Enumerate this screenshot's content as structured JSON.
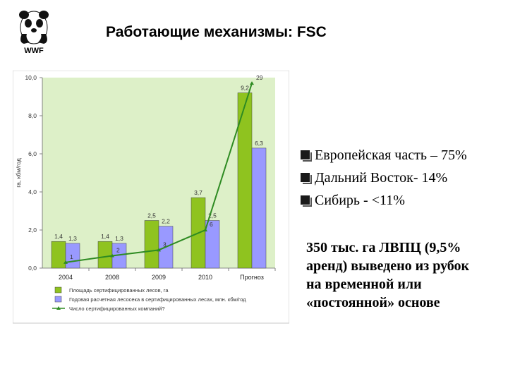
{
  "logo": {
    "text": "WWF"
  },
  "title": "Работающие механизмы: FSC",
  "bullets": [
    "Европейская часть – 75%",
    "Дальний Восток- 14%",
    "Сибирь - <11%"
  ],
  "note_lines": [
    "350 тыс. га ЛВПЦ (9,5%",
    "аренд) выведено из рубок",
    "на временной или",
    "«постоянной» основе"
  ],
  "chart_data": {
    "type": "bar",
    "categories": [
      "2004",
      "2008",
      "2009",
      "2010",
      "Прогноз"
    ],
    "ylabel": "га, кбм/год",
    "ylim": [
      0,
      10
    ],
    "yticks": [
      "0,0",
      "2,0",
      "4,0",
      "6,0",
      "8,0",
      "10,0"
    ],
    "series": [
      {
        "name": "Площадь сертифицированных лесов, га",
        "type": "bar",
        "color": "#8fc31f",
        "values": [
          1.4,
          1.4,
          2.5,
          3.7,
          9.2
        ],
        "labels": [
          "1,4",
          "1,4",
          "2,5",
          "3,7",
          "9,2"
        ]
      },
      {
        "name": "Годовая расчетная лесосека в сертифицированных лесах, млн. кбм/год",
        "type": "bar",
        "color": "#9999ff",
        "values": [
          1.3,
          1.3,
          2.2,
          2.5,
          6.3
        ],
        "labels": [
          "1,3",
          "1,3",
          "2,2",
          "2,5",
          "6,3"
        ]
      },
      {
        "name": "Число сертифицированных компаний?",
        "type": "line",
        "color": "#2e8b22",
        "values": [
          0.3,
          0.65,
          0.95,
          2.0,
          9.7
        ],
        "labels": [
          "1",
          "2",
          "3",
          "6",
          "29"
        ]
      }
    ],
    "legend_position": "bottom",
    "grid": false
  }
}
